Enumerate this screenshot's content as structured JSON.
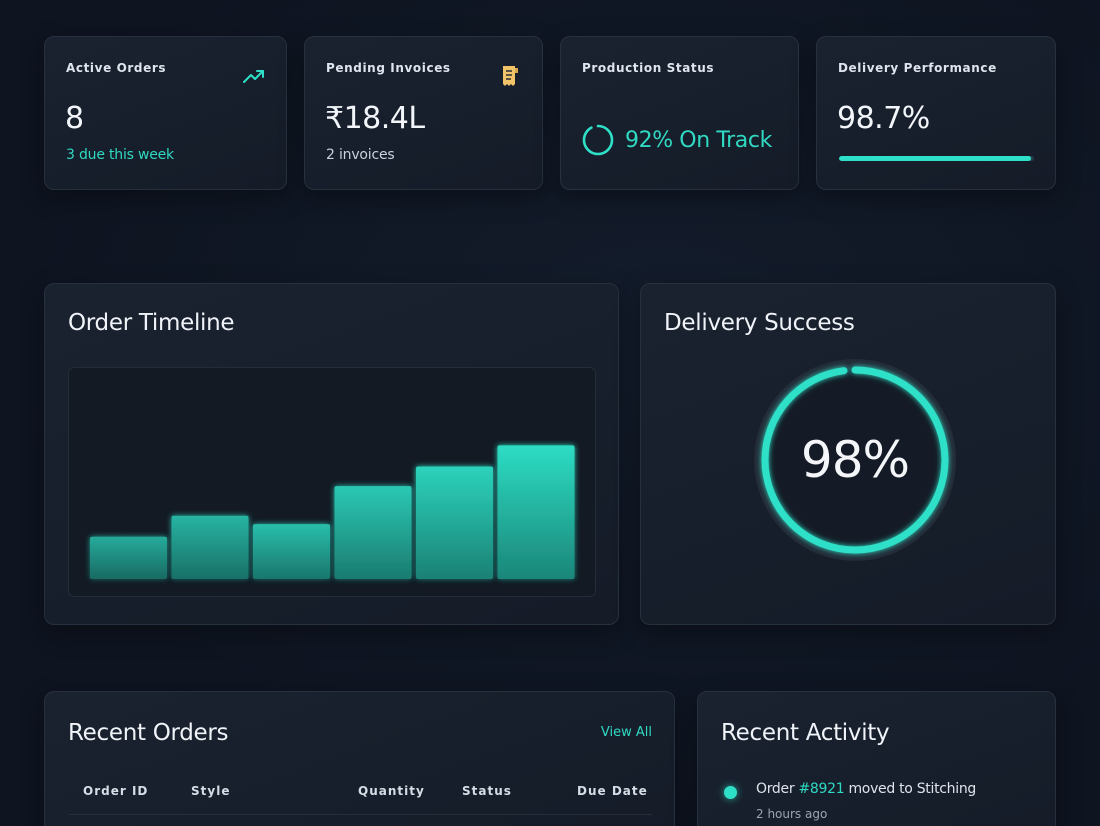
{
  "stats": {
    "active_orders": {
      "label": "Active Orders",
      "value": "8",
      "sub": "3 due this week",
      "icon": "trending-up-icon"
    },
    "pending_invoices": {
      "label": "Pending Invoices",
      "value": "₹18.4L",
      "sub": "2 invoices",
      "icon": "receipt-icon"
    },
    "production_status": {
      "label": "Production Status",
      "value": "92% On Track",
      "progress": 0.92
    },
    "delivery_performance": {
      "label": "Delivery Performance",
      "value": "98.7%",
      "progress": 0.987
    }
  },
  "timeline": {
    "title": "Order Timeline"
  },
  "success": {
    "title": "Delivery Success",
    "value": "98%",
    "progress": 0.98
  },
  "orders": {
    "title": "Recent Orders",
    "view_all": "View All",
    "columns": {
      "id": "Order ID",
      "style": "Style",
      "quantity": "Quantity",
      "status": "Status",
      "due": "Due Date"
    }
  },
  "activity": {
    "title": "Recent Activity",
    "items": [
      {
        "prefix": "Order ",
        "order": "#8921",
        "suffix": " moved to Stitching",
        "time": "2 hours ago"
      }
    ]
  },
  "colors": {
    "accent": "#2fe0c8",
    "background": "#0f1623",
    "card": "#1a2230",
    "receipt": "#f2c46a"
  },
  "chart_data": {
    "type": "bar",
    "categories": [
      "",
      "",
      "",
      "",
      "",
      ""
    ],
    "values": [
      30,
      45,
      39,
      66,
      80,
      95
    ],
    "title": "Order Timeline",
    "xlabel": "",
    "ylabel": "",
    "ylim": [
      0,
      150
    ],
    "grid": false
  }
}
